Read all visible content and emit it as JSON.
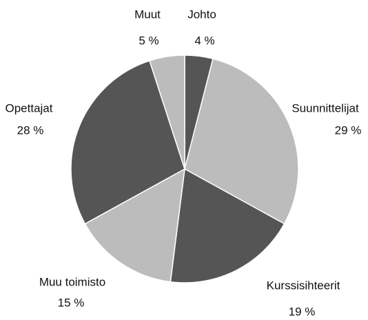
{
  "chart_data": {
    "type": "pie",
    "categories": [
      "Johto",
      "Suunnittelijat",
      "Kurssisihteerit",
      "Muu toimisto",
      "Opettajat",
      "Muut"
    ],
    "values": [
      4,
      29,
      19,
      15,
      28,
      5
    ],
    "value_labels": [
      "4 %",
      "29 %",
      "19 %",
      "15 %",
      "28 %",
      "5 %"
    ],
    "colors": [
      "#555555",
      "#bcbcbc",
      "#555555",
      "#bcbcbc",
      "#555555",
      "#bcbcbc"
    ]
  }
}
